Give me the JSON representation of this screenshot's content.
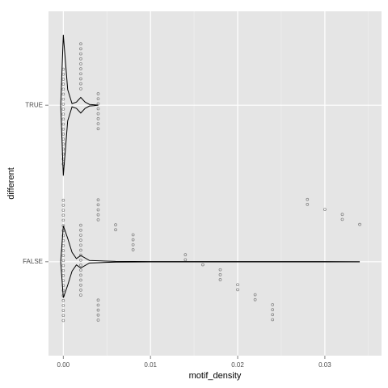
{
  "chart_data": {
    "type": "violin",
    "x_label": "motif_density",
    "y_label": "different",
    "categories": [
      "FALSE",
      "TRUE"
    ],
    "xlim": [
      -0.0017,
      0.0365
    ],
    "xticks": [
      {
        "value": 0,
        "label": "0.00"
      },
      {
        "value": 0.01,
        "label": "0.01"
      },
      {
        "value": 0.02,
        "label": "0.02"
      },
      {
        "value": 0.03,
        "label": "0.03"
      }
    ],
    "minor_xticks": [
      0.005,
      0.015,
      0.025,
      0.035
    ],
    "grid": true,
    "violins": [
      {
        "x": [
          -0.0003,
          0,
          0.0005,
          0.001,
          0.0015,
          0.002,
          0.003,
          0.004,
          0.006,
          0.01,
          0.02,
          0.03,
          0.034
        ],
        "width": [
          0,
          0.23,
          0.15,
          0.06,
          0.02,
          0.04,
          0.008,
          0.006,
          0.002,
          0.001,
          0.001,
          0.001,
          0
        ]
      },
      {
        "x": [
          -0.0003,
          0,
          0.0005,
          0.001,
          0.0015,
          0.002,
          0.0025,
          0.003,
          0.0035,
          0.004
        ],
        "width": [
          0,
          0.45,
          0.1,
          0.01,
          0.02,
          0.05,
          0.02,
          0.005,
          0.003,
          0
        ]
      }
    ],
    "points": [
      [
        0,
        0,
        0,
        0,
        0,
        0,
        0,
        0,
        0,
        0,
        0,
        0,
        0,
        0,
        0,
        0,
        0,
        0,
        0,
        0,
        0,
        0,
        0,
        0,
        0,
        0.002,
        0.002,
        0.002,
        0.002,
        0.002,
        0.002,
        0.002,
        0.002,
        0.002,
        0.002,
        0.002,
        0.002,
        0.002,
        0.002,
        0.002,
        0.004,
        0.004,
        0.004,
        0.004,
        0.004,
        0.004,
        0.004,
        0.004,
        0.004,
        0.004,
        0.006,
        0.006,
        0.008,
        0.008,
        0.008,
        0.008,
        0.014,
        0.014,
        0.016,
        0.018,
        0.018,
        0.018,
        0.02,
        0.02,
        0.022,
        0.022,
        0.024,
        0.024,
        0.024,
        0.024,
        0.028,
        0.028,
        0.03,
        0.032,
        0.032,
        0.034
      ],
      [
        0,
        0,
        0,
        0,
        0,
        0,
        0,
        0,
        0,
        0,
        0,
        0,
        0,
        0,
        0,
        0,
        0,
        0,
        0,
        0,
        0.002,
        0.002,
        0.002,
        0.002,
        0.002,
        0.002,
        0.002,
        0.002,
        0.002,
        0.002,
        0.004,
        0.004,
        0.004,
        0.004,
        0.004,
        0.004,
        0.004,
        0.004
      ]
    ]
  }
}
